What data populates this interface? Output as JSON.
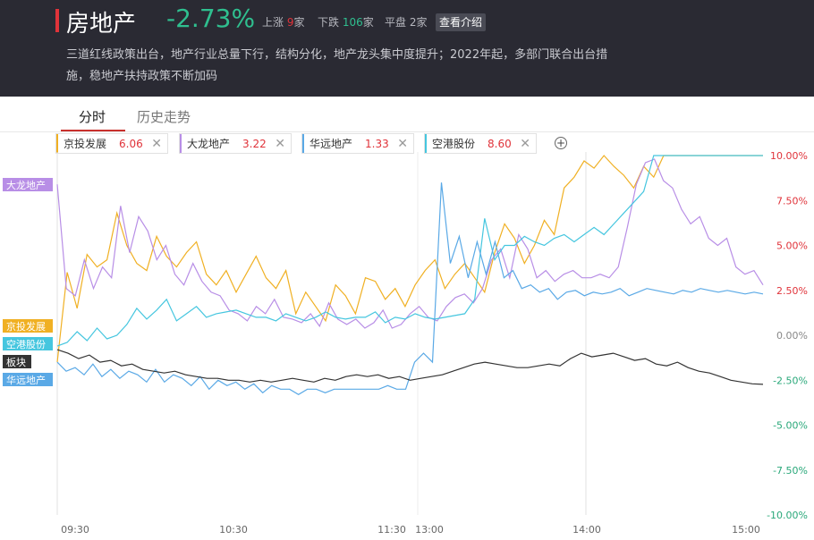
{
  "header": {
    "title": "房地产",
    "change": "-2.73%",
    "up_label": "上涨",
    "up_count": "9",
    "up_unit": "家",
    "down_label": "下跌",
    "down_count": "106",
    "down_unit": "家",
    "flat_label": "平盘",
    "flat_count": "2",
    "flat_unit": "家",
    "intro_button": "查看介绍",
    "description": "三道红线政策出台，地产行业总量下行，结构分化，地产龙头集中度提升；2022年起，多部门联合出台措施，稳地产扶持政策不断加码"
  },
  "tabs": [
    "分时",
    "历史走势"
  ],
  "chips": [
    {
      "name": "京投发展",
      "value": "6.06",
      "color": "#f0b023"
    },
    {
      "name": "大龙地产",
      "value": "3.22",
      "color": "#b88ee6"
    },
    {
      "name": "华远地产",
      "value": "1.33",
      "color": "#5aa9e6"
    },
    {
      "name": "空港股份",
      "value": "8.60",
      "color": "#45c6df"
    }
  ],
  "add_icon": "plus-circle-icon",
  "close_icon": "close-icon",
  "chart_data": {
    "type": "line",
    "ylim": [
      -10,
      11
    ],
    "yticks": [
      "10.00%",
      "7.50%",
      "5.00%",
      "2.50%",
      "0.00%",
      "-2.50%",
      "-5.00%",
      "-7.50%",
      "-10.00%"
    ],
    "ytick_values": [
      10,
      7.5,
      5,
      2.5,
      0,
      -2.5,
      -5,
      -7.5,
      -10
    ],
    "xticks": [
      "09:30",
      "10:30",
      "11:30",
      "13:00",
      "14:00",
      "15:00"
    ],
    "series": [
      {
        "name": "京投发展",
        "color": "#f0b023",
        "values": [
          -1.5,
          3.5,
          1.5,
          4.5,
          3.8,
          4.2,
          6.8,
          5.0,
          4.0,
          3.6,
          5.5,
          4.4,
          3.8,
          4.6,
          5.2,
          3.4,
          2.8,
          3.6,
          2.4,
          3.4,
          4.4,
          3.2,
          2.6,
          3.6,
          1.2,
          2.4,
          1.6,
          0.8,
          2.8,
          2.2,
          1.2,
          3.2,
          3.0,
          2.0,
          2.6,
          1.6,
          2.8,
          3.6,
          4.2,
          2.6,
          3.4,
          4.0,
          3.2,
          2.4,
          4.6,
          6.2,
          5.4,
          4.0,
          5.0,
          6.4,
          5.6,
          8.2,
          8.8,
          9.7,
          9.3,
          10.0,
          9.4,
          8.9,
          8.2,
          9.4,
          8.8,
          10.0,
          10.0,
          10.0,
          10.0,
          10.0,
          10.0,
          10.0,
          10.0,
          10.0,
          10.0,
          10.0
        ]
      },
      {
        "name": "大龙地产",
        "color": "#b88ee6",
        "values": [
          8.4,
          2.6,
          2.2,
          4.2,
          2.6,
          3.8,
          3.2,
          7.2,
          4.6,
          6.6,
          5.8,
          4.2,
          5.0,
          3.4,
          2.8,
          4.0,
          3.0,
          2.4,
          2.2,
          1.4,
          1.2,
          0.8,
          1.6,
          1.2,
          2.0,
          1.0,
          0.9,
          0.7,
          1.2,
          0.5,
          1.8,
          0.9,
          0.6,
          0.9,
          0.4,
          0.7,
          1.4,
          0.4,
          0.6,
          1.2,
          1.6,
          1.0,
          0.8,
          1.6,
          2.1,
          2.3,
          1.8,
          2.6,
          4.2,
          4.8,
          3.2,
          5.6,
          4.8,
          3.2,
          3.6,
          3.0,
          3.4,
          3.6,
          3.2,
          3.2,
          3.4,
          3.2,
          3.8,
          6.0,
          8.4,
          9.6,
          9.8,
          8.6,
          8.2,
          7.0,
          6.2,
          6.6,
          5.4,
          5.0,
          5.4,
          3.8,
          3.4,
          3.6,
          2.8
        ]
      },
      {
        "name": "空港股份",
        "color": "#45c6df",
        "values": [
          -0.6,
          -0.4,
          0.2,
          -0.3,
          0.4,
          -0.2,
          0.0,
          0.6,
          1.5,
          0.9,
          1.4,
          2.0,
          0.8,
          1.2,
          1.6,
          1.0,
          1.2,
          1.3,
          1.4,
          1.2,
          1.0,
          1.0,
          0.8,
          1.2,
          1.0,
          0.8,
          1.0,
          1.3,
          1.0,
          0.9,
          1.0,
          1.0,
          1.3,
          0.7,
          1.0,
          0.9,
          1.2,
          1.0,
          0.9,
          1.0,
          1.1,
          1.2,
          2.0,
          6.5,
          4.2,
          5.0,
          5.0,
          5.5,
          5.2,
          5.0,
          5.4,
          5.6,
          5.2,
          5.6,
          6.0,
          5.6,
          6.2,
          6.8,
          7.4,
          8.0,
          10.0,
          10.0,
          10.0,
          10.0,
          10.0,
          10.0,
          10.0,
          10.0,
          10.0,
          10.0,
          10.0,
          10.0
        ]
      },
      {
        "name": "华远地产",
        "color": "#5aa9e6",
        "values": [
          -1.5,
          -2.0,
          -1.8,
          -2.2,
          -1.6,
          -2.3,
          -1.9,
          -2.4,
          -2.0,
          -2.2,
          -2.6,
          -1.9,
          -2.6,
          -2.2,
          -2.4,
          -2.8,
          -2.3,
          -3.0,
          -2.5,
          -2.8,
          -2.6,
          -3.0,
          -2.7,
          -3.2,
          -2.8,
          -3.0,
          -3.0,
          -3.3,
          -3.0,
          -3.0,
          -3.2,
          -3.0,
          -3.0,
          -3.0,
          -3.0,
          -3.0,
          -3.0,
          -2.8,
          -3.0,
          -3.0,
          -1.5,
          -1.0,
          -1.5,
          8.5,
          4.0,
          5.5,
          3.2,
          5.2,
          3.4,
          5.2,
          3.2,
          3.6,
          2.6,
          2.8,
          2.4,
          2.6,
          2.0,
          2.4,
          2.5,
          2.2,
          2.4,
          2.3,
          2.4,
          2.6,
          2.2,
          2.4,
          2.6,
          2.5,
          2.4,
          2.3,
          2.5,
          2.4,
          2.6,
          2.5,
          2.4,
          2.5,
          2.4,
          2.3,
          2.4,
          2.3
        ]
      },
      {
        "name": "板块",
        "color": "#333333",
        "values": [
          -0.8,
          -1.0,
          -1.3,
          -1.1,
          -1.5,
          -1.4,
          -1.7,
          -1.6,
          -1.9,
          -2.0,
          -2.1,
          -2.0,
          -2.2,
          -2.3,
          -2.4,
          -2.4,
          -2.5,
          -2.5,
          -2.6,
          -2.5,
          -2.6,
          -2.5,
          -2.4,
          -2.5,
          -2.6,
          -2.4,
          -2.5,
          -2.3,
          -2.2,
          -2.3,
          -2.2,
          -2.4,
          -2.3,
          -2.5,
          -2.4,
          -2.3,
          -2.2,
          -2.0,
          -1.8,
          -1.6,
          -1.5,
          -1.6,
          -1.7,
          -1.8,
          -1.8,
          -1.7,
          -1.6,
          -1.7,
          -1.3,
          -1.0,
          -1.2,
          -1.1,
          -1.0,
          -1.2,
          -1.4,
          -1.3,
          -1.6,
          -1.7,
          -1.5,
          -1.8,
          -2.0,
          -2.1,
          -2.3,
          -2.5,
          -2.6,
          -2.7,
          -2.73
        ]
      }
    ]
  },
  "side_labels": [
    {
      "name": "大龙地产",
      "color": "#b88ee6"
    },
    {
      "name": "京投发展",
      "color": "#f0b023"
    },
    {
      "name": "空港股份",
      "color": "#45c6df"
    },
    {
      "name": "板块",
      "color": "#333333"
    },
    {
      "name": "华远地产",
      "color": "#5aa9e6"
    }
  ]
}
